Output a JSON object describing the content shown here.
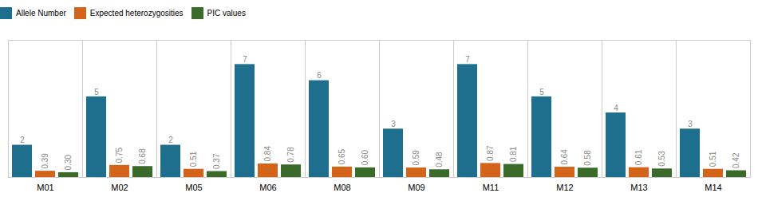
{
  "chart_data": {
    "type": "bar",
    "categories": [
      "M01",
      "M02",
      "M05",
      "M06",
      "M08",
      "M09",
      "M11",
      "M12",
      "M13",
      "M14"
    ],
    "series": [
      {
        "name": "Allele Number",
        "color": "#1e6f8e",
        "values": [
          2,
          5,
          2,
          7,
          6,
          3,
          7,
          5,
          4,
          3
        ]
      },
      {
        "name": "Expected heterozygosities",
        "color": "#d4641a",
        "values": [
          0.39,
          0.75,
          0.51,
          0.84,
          0.65,
          0.59,
          0.87,
          0.64,
          0.61,
          0.51
        ]
      },
      {
        "name": "PIC values",
        "color": "#3a6b2a",
        "values": [
          0.3,
          0.68,
          0.37,
          0.78,
          0.6,
          0.48,
          0.81,
          0.58,
          0.53,
          0.42
        ],
        "value_labels": [
          "0.30",
          "0.68",
          "0.37",
          "0.78",
          "0.60",
          "0.48",
          "0.81",
          "0.58",
          "0.53",
          "0.42"
        ]
      }
    ],
    "ylim": [
      0,
      8.5
    ],
    "tick_labels": "x",
    "data_labels": true,
    "legend": "top",
    "grid": false
  }
}
